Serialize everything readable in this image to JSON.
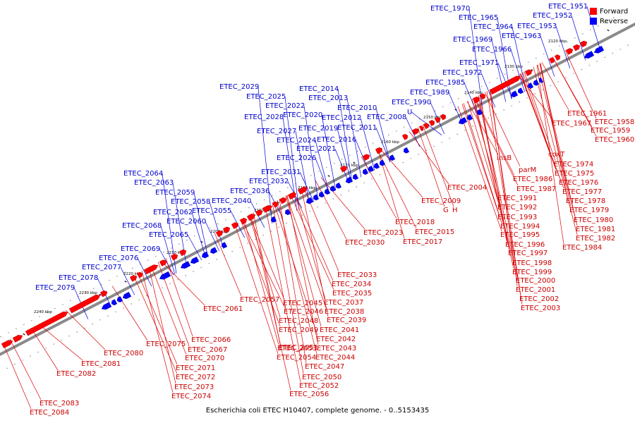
{
  "caption": "Escherichia coli ETEC H10407, complete genome. - 0..5153435",
  "legend": [
    {
      "label": "Forward",
      "color": "#ff0000"
    },
    {
      "label": "Reverse",
      "color": "#0000ff"
    }
  ],
  "colors": {
    "forward_label": "#cc0000",
    "reverse_label": "#0000cc",
    "backbone": "#888888"
  },
  "ruler_labels": [
    "2120 kbp",
    "2130 kbp",
    "2140 kbp",
    "2150 kbp",
    "2160 kbp",
    "2170 kbp",
    "2180 kbp",
    "2190 kbp",
    "2200 kbp",
    "2210 kbp",
    "2220 kbp",
    "2230 kbp",
    "2240 kbp"
  ],
  "reverse_labels": [
    "ETEC_1970",
    "ETEC_1951",
    "ETEC_1965",
    "ETEC_1952",
    "ETEC_1964",
    "ETEC_1953",
    "ETEC_1969",
    "ETEC_1963",
    "ETEC_1966",
    "ETEC_1971",
    "ETEC_1972",
    "ETEC_1985",
    "ETEC_1989",
    "ETEC_1990",
    "U",
    "ETEC_2029",
    "ETEC_2014",
    "ETEC_2025",
    "ETEC_2013",
    "ETEC_2022",
    "ETEC_2010",
    "ETEC_2028",
    "ETEC_2020",
    "ETEC_2012",
    "ETEC_2008",
    "ETEC_2027",
    "ETEC_2019",
    "ETEC_2011",
    "ETEC_2024",
    "ETEC_2016",
    "ETEC_2021",
    "ETEC_2026",
    "ETEC_2031",
    "ETEC_2032",
    "ETEC_2036",
    "ETEC_2040",
    "ETEC_2064",
    "ETEC_2063",
    "ETEC_2059",
    "ETEC_2058",
    "ETEC_2062",
    "ETEC_2055",
    "ETEC_2060",
    "ETEC_2068",
    "ETEC_2065",
    "ETEC_2069",
    "ETEC_2076",
    "ETEC_2077",
    "ETEC_2078",
    "ETEC_2079"
  ],
  "forward_labels": [
    "ETEC_1961",
    "ETEC_1958",
    "ETEC_1967",
    "ETEC_1959",
    "ETEC_1960",
    "coxT",
    "ETEC_1974",
    "ETEC_1975",
    "ETEC_1976",
    "ETEC_1977",
    "ETEC_1978",
    "ETEC_1979",
    "ETEC_1980",
    "ETEC_1981",
    "ETEC_1982",
    "ETEC_1984",
    "insB",
    "parM",
    "ETEC_1986",
    "ETEC_1987",
    "ETEC_1991",
    "ETEC_1992",
    "ETEC_1993",
    "ETEC_1994",
    "ETEC_1995",
    "ETEC_1996",
    "ETEC_1997",
    "ETEC_1998",
    "ETEC_1999",
    "ETEC_2000",
    "ETEC_2001",
    "ETEC_2002",
    "ETEC_2003",
    "ETEC_2004",
    "ETEC_2009",
    "G",
    "H",
    "ETEC_2018",
    "ETEC_2015",
    "ETEC_2023",
    "ETEC_2017",
    "ETEC_2030",
    "ETEC_2033",
    "ETEC_2034",
    "ETEC_2035",
    "ETEC_2057",
    "ETEC_2037",
    "ETEC_2045",
    "ETEC_2038",
    "ETEC_2046",
    "ETEC_2039",
    "ETEC_2048",
    "ETEC_2041",
    "ETEC_2049",
    "ETEC_2042",
    "ETEC_2051",
    "ETEC_2043",
    "ETEC_2053",
    "ETEC_2044",
    "ETEC_2054",
    "ETEC_2047",
    "ETEC_2050",
    "ETEC_2052",
    "ETEC_2056",
    "ETEC_2061",
    "ETEC_2066",
    "ETEC_2067",
    "ETEC_2070",
    "ETEC_2071",
    "ETEC_2072",
    "ETEC_2073",
    "ETEC_2074",
    "ETEC_2075",
    "ETEC_2080",
    "ETEC_2081",
    "ETEC_2082",
    "ETEC_2083",
    "ETEC_2084"
  ]
}
